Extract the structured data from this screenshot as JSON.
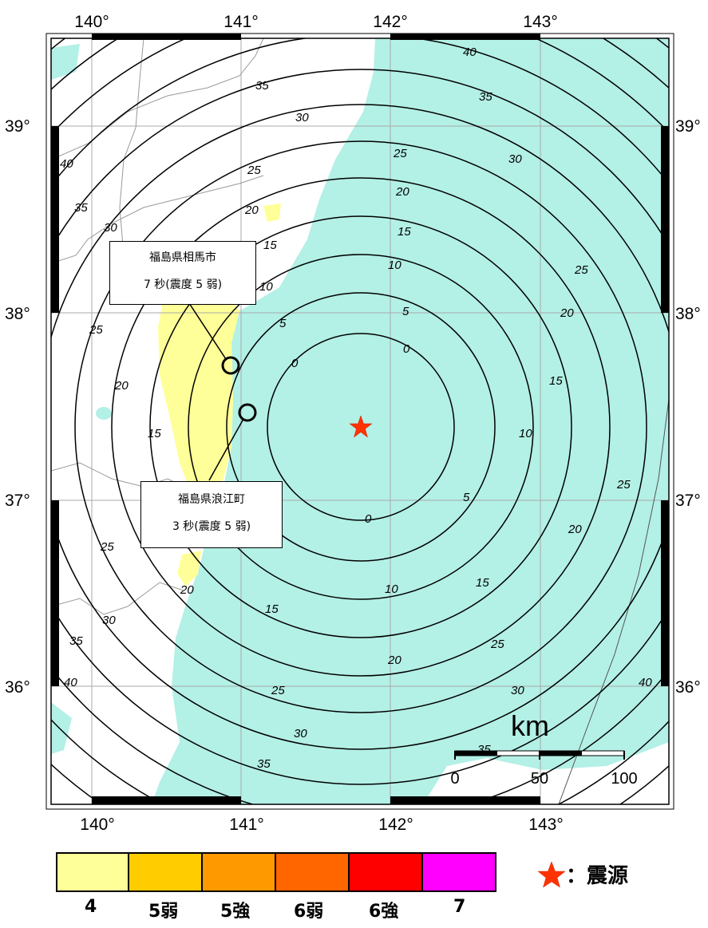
{
  "map": {
    "lon_ticks": [
      "140°",
      "141°",
      "142°",
      "143°"
    ],
    "lat_ticks": [
      "39°",
      "38°",
      "37°",
      "36°"
    ],
    "contour_labels": [
      "0",
      "5",
      "10",
      "15",
      "20",
      "25",
      "30",
      "35",
      "40"
    ],
    "scale_bar": {
      "unit": "km",
      "ticks": [
        "0",
        "50",
        "100"
      ]
    },
    "colors": {
      "sea": "#b3f0e6",
      "land": "#ffffff",
      "intensity_4": "#ffff99"
    }
  },
  "callouts": [
    {
      "place": "福島県相馬市",
      "detail": "7 秒(震度 5 弱)"
    },
    {
      "place": "福島県浪江町",
      "detail": "3 秒(震度 5 弱)"
    }
  ],
  "legend": {
    "scale": [
      {
        "label": "4",
        "color": "#ffff99"
      },
      {
        "label": "5弱",
        "color": "#ffcc00"
      },
      {
        "label": "5強",
        "color": "#ff9900"
      },
      {
        "label": "6弱",
        "color": "#ff6600"
      },
      {
        "label": "6強",
        "color": "#ff0000"
      },
      {
        "label": "7",
        "color": "#ff00ff"
      }
    ],
    "epicenter": "：震源",
    "epicenter_color": "#ff3300"
  }
}
